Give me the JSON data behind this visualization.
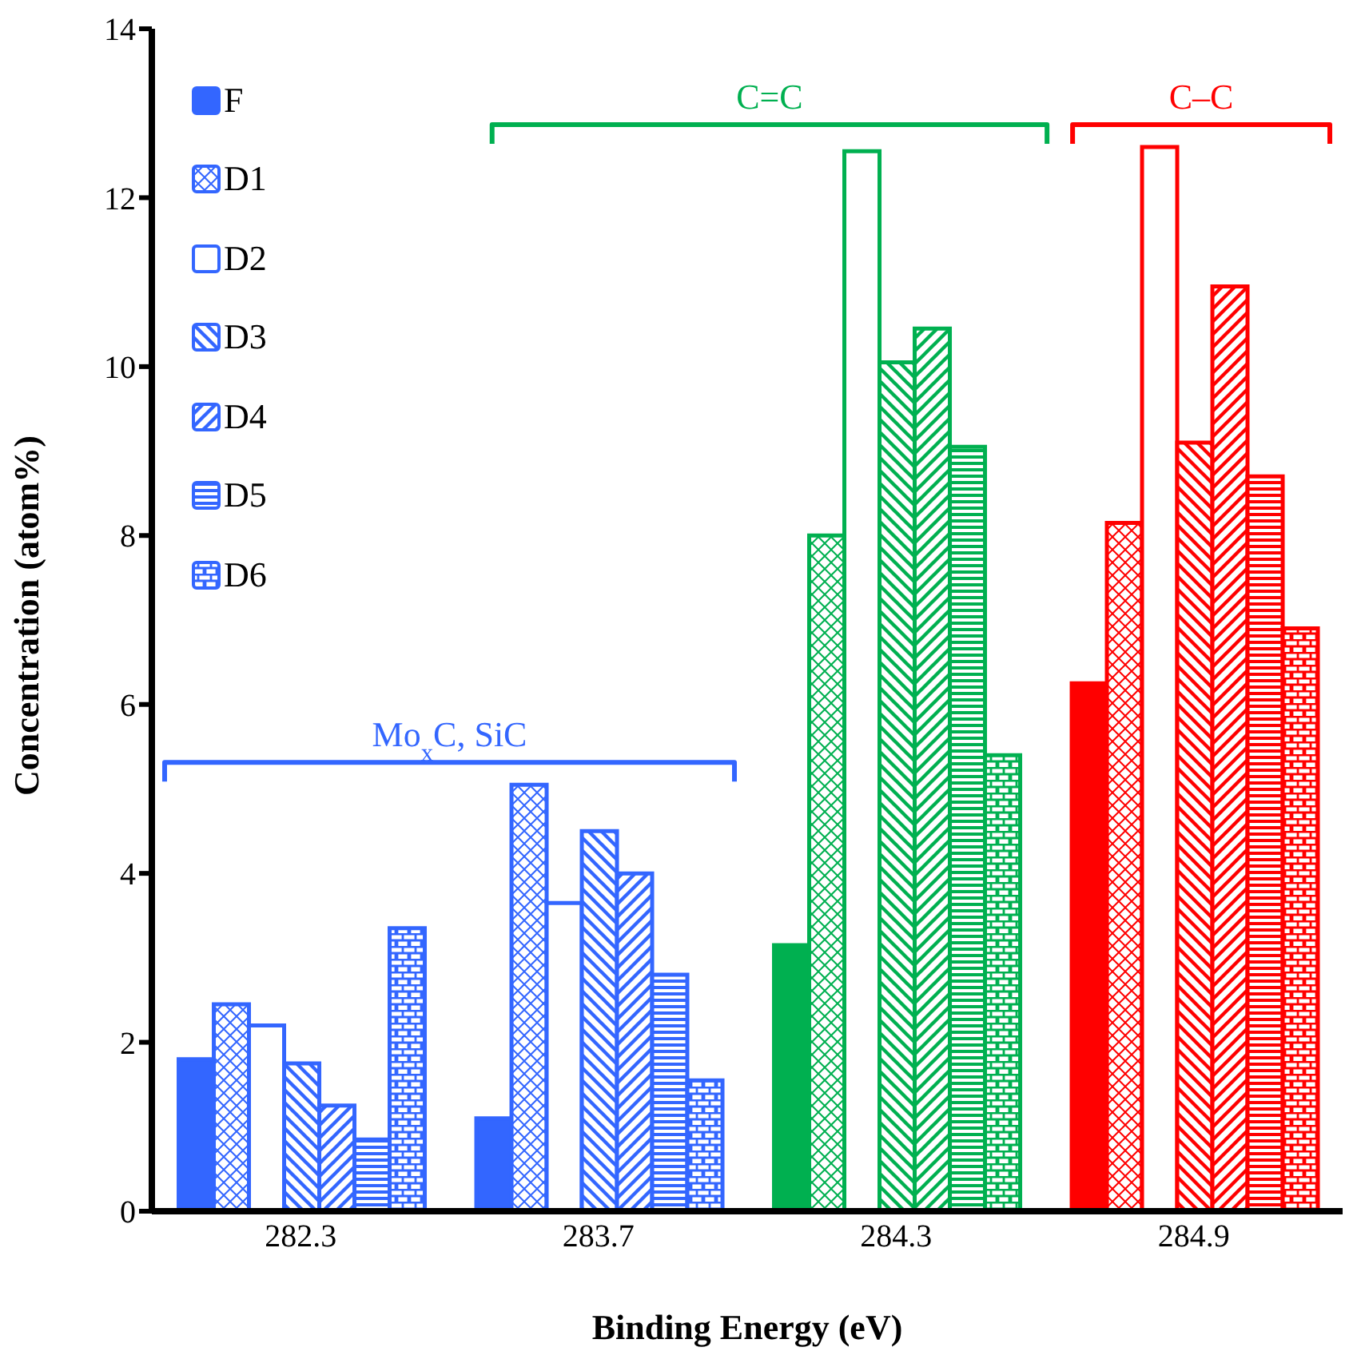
{
  "chart_data": {
    "type": "bar",
    "xlabel": "Binding Energy (eV)",
    "ylabel": "Concentration (atom%)",
    "categories": [
      "282.3",
      "283.7",
      "284.3",
      "284.9"
    ],
    "series": [
      {
        "name": "F",
        "color": "#3366ff",
        "colors": [
          "#3366ff",
          "#3366ff",
          "#00b050",
          "#ff0000"
        ],
        "values": [
          1.8,
          1.1,
          3.15,
          6.25
        ]
      },
      {
        "name": "D1",
        "color": "#3366ff",
        "colors": [
          "#3366ff",
          "#3366ff",
          "#00b050",
          "#ff0000"
        ],
        "values": [
          2.45,
          5.05,
          8.0,
          8.15
        ]
      },
      {
        "name": "D2",
        "color": "#3366ff",
        "colors": [
          "#3366ff",
          "#3366ff",
          "#00b050",
          "#ff0000"
        ],
        "values": [
          2.2,
          3.65,
          12.55,
          12.6
        ]
      },
      {
        "name": "D3",
        "color": "#3366ff",
        "colors": [
          "#3366ff",
          "#3366ff",
          "#00b050",
          "#ff0000"
        ],
        "values": [
          1.75,
          4.5,
          10.05,
          9.1
        ]
      },
      {
        "name": "D4",
        "color": "#3366ff",
        "colors": [
          "#3366ff",
          "#3366ff",
          "#00b050",
          "#ff0000"
        ],
        "values": [
          1.25,
          4.0,
          10.45,
          10.95
        ]
      },
      {
        "name": "D5",
        "color": "#3366ff",
        "colors": [
          "#3366ff",
          "#3366ff",
          "#00b050",
          "#ff0000"
        ],
        "values": [
          0.85,
          2.8,
          9.05,
          8.7
        ]
      },
      {
        "name": "D6",
        "color": "#3366ff",
        "colors": [
          "#3366ff",
          "#3366ff",
          "#00b050",
          "#ff0000"
        ],
        "values": [
          3.35,
          1.55,
          5.4,
          6.9
        ]
      }
    ],
    "annotations": [
      "Mo$_{x}$C, SiC",
      "C=C",
      "C–C"
    ],
    "ylim": [
      0,
      14
    ],
    "yticks": [
      0,
      2,
      4,
      6,
      8,
      10,
      12,
      14
    ],
    "legend": "top left",
    "grid": false
  }
}
